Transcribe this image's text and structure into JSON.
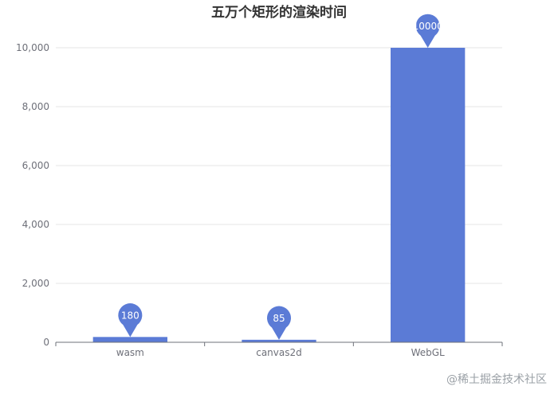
{
  "chart_data": {
    "type": "bar",
    "title": "五万个矩形的渲染时间",
    "categories": [
      "wasm",
      "canvas2d",
      "WebGL"
    ],
    "values": [
      180,
      85,
      10000
    ],
    "ylim": [
      0,
      10000
    ],
    "yticks": [
      0,
      2000,
      4000,
      6000,
      8000,
      10000
    ],
    "ytick_labels": [
      "0",
      "2,000",
      "4,000",
      "6,000",
      "8,000",
      "10,000"
    ],
    "grid": true,
    "bar_color": "#5b7bd6",
    "annotations": [
      "180",
      "85",
      "10000"
    ],
    "annotation_style": "map-pin markers above bars"
  },
  "watermark": "@稀土掘金技术社区"
}
